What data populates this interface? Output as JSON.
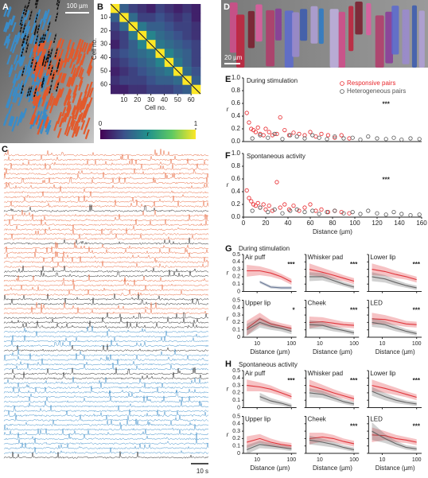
{
  "figure": {
    "panel_labels": [
      "A",
      "B",
      "C",
      "D",
      "E",
      "F",
      "G",
      "H"
    ],
    "scale_bars": {
      "A": "100 µm",
      "C": "10 s",
      "D": "20 µm"
    }
  },
  "traces": [
    {
      "color": "#e8673c",
      "count": 12
    },
    {
      "color": "#222222",
      "count": 1
    },
    {
      "color": "#e8673c",
      "count": 6
    },
    {
      "color": "#222222",
      "count": 1
    },
    {
      "color": "#e8673c",
      "count": 5
    },
    {
      "color": "#222222",
      "count": 2
    },
    {
      "color": "#e8673c",
      "count": 4
    },
    {
      "color": "#222222",
      "count": 2
    },
    {
      "color": "#e8673c",
      "count": 2
    },
    {
      "color": "#222222",
      "count": 3
    },
    {
      "color": "#3a8cc8",
      "count": 4
    },
    {
      "color": "#222222",
      "count": 1
    },
    {
      "color": "#3a8cc8",
      "count": 4
    },
    {
      "color": "#222222",
      "count": 2
    },
    {
      "color": "#3a8cc8",
      "count": 16
    },
    {
      "color": "#222222",
      "count": 1
    }
  ],
  "chart_data": [
    {
      "type": "heatmap",
      "xlabel": "Cell no.",
      "ylabel": "Cell no.",
      "xlim": [
        0,
        67
      ],
      "ylim": [
        0,
        67
      ],
      "xticks": [
        10,
        20,
        30,
        40,
        50,
        60
      ],
      "yticks": [
        10,
        20,
        30,
        40,
        50,
        60
      ],
      "clim": [
        0,
        1
      ],
      "colorbar_ticks": [
        0,
        1
      ],
      "colorbar_label": "r",
      "colors": [
        "#440154",
        "#3b528b",
        "#21918c",
        "#5ec962",
        "#fde725"
      ],
      "values": [
        [
          1,
          0.3,
          0.2,
          0.15,
          0.1,
          0.2,
          0.15,
          0.1,
          0.15,
          0.1
        ],
        [
          0.3,
          1,
          0.35,
          0.2,
          0.2,
          0.25,
          0.2,
          0.15,
          0.2,
          0.1
        ],
        [
          0.2,
          0.35,
          1,
          0.4,
          0.3,
          0.3,
          0.25,
          0.2,
          0.2,
          0.15
        ],
        [
          0.15,
          0.2,
          0.4,
          1,
          0.45,
          0.35,
          0.3,
          0.25,
          0.2,
          0.15
        ],
        [
          0.1,
          0.2,
          0.3,
          0.45,
          1,
          0.4,
          0.35,
          0.3,
          0.25,
          0.2
        ],
        [
          0.2,
          0.25,
          0.3,
          0.35,
          0.4,
          1,
          0.45,
          0.35,
          0.3,
          0.2
        ],
        [
          0.15,
          0.2,
          0.25,
          0.3,
          0.35,
          0.45,
          1,
          0.4,
          0.3,
          0.2
        ],
        [
          0.1,
          0.15,
          0.2,
          0.25,
          0.3,
          0.35,
          0.4,
          1,
          0.35,
          0.25
        ],
        [
          0.15,
          0.2,
          0.2,
          0.2,
          0.25,
          0.3,
          0.3,
          0.35,
          1,
          0.3
        ],
        [
          0.1,
          0.1,
          0.15,
          0.15,
          0.2,
          0.2,
          0.2,
          0.25,
          0.3,
          1
        ]
      ]
    },
    {
      "type": "scatter",
      "title": "During stimulation",
      "ylabel": "r",
      "annotation": "***",
      "legend": "upper right",
      "xlim": [
        0,
        160
      ],
      "ylim": [
        0,
        1
      ],
      "yticks": [
        {
          "value": 0,
          "label": "0.0"
        },
        {
          "value": 0.2,
          "label": "0.2"
        },
        {
          "value": 0.4,
          "label": "0.4"
        },
        {
          "value": 0.6,
          "label": "0.6"
        },
        {
          "value": 0.8,
          "label": "0.8"
        },
        {
          "value": 1,
          "label": "1.0"
        }
      ],
      "series": [
        {
          "name": "Responsive pairs",
          "color": "#e8262b",
          "x": [
            3,
            5,
            7,
            9,
            11,
            13,
            15,
            18,
            20,
            23,
            26,
            30,
            33,
            37,
            41,
            45,
            50,
            55,
            60,
            65,
            70,
            76,
            82,
            88,
            95
          ],
          "values": [
            0.45,
            0.3,
            0.2,
            0.18,
            0.15,
            0.22,
            0.12,
            0.1,
            0.2,
            0.15,
            0.1,
            0.12,
            0.38,
            0.18,
            0.1,
            0.14,
            0.12,
            0.1,
            0.15,
            0.08,
            0.12,
            0.1,
            0.06,
            0.1,
            0.05
          ]
        },
        {
          "name": "Heterogeneous pairs",
          "color": "#555555",
          "x": [
            8,
            15,
            22,
            28,
            35,
            42,
            48,
            55,
            62,
            68,
            75,
            82,
            90,
            98,
            105,
            112,
            120,
            128,
            135,
            142,
            150,
            158
          ],
          "values": [
            0.05,
            0.1,
            0.06,
            0.12,
            0.04,
            0.1,
            0.08,
            0.05,
            0.1,
            0.06,
            0.04,
            0.08,
            0.05,
            0.06,
            0.03,
            0.08,
            0.05,
            0.04,
            0.06,
            0.03,
            0.05,
            0.04
          ]
        }
      ]
    },
    {
      "type": "scatter",
      "title": "Spontaneous activity",
      "ylabel": "r",
      "xlabel": "Distance (µm)",
      "annotation": "***",
      "xlim": [
        0,
        160
      ],
      "ylim": [
        0,
        1
      ],
      "xticks": [
        0,
        20,
        40,
        60,
        80,
        100,
        120,
        140,
        160
      ],
      "yticks": [
        {
          "value": 0,
          "label": "0.0"
        },
        {
          "value": 0.2,
          "label": "0.2"
        },
        {
          "value": 0.4,
          "label": "0.4"
        },
        {
          "value": 0.6,
          "label": "0.6"
        },
        {
          "value": 0.8,
          "label": "0.8"
        },
        {
          "value": 1,
          "label": "1.0"
        }
      ],
      "series": [
        {
          "color": "#e8262b",
          "x": [
            3,
            5,
            7,
            9,
            11,
            13,
            15,
            18,
            20,
            23,
            26,
            30,
            33,
            37,
            41,
            45,
            50,
            55,
            60,
            65,
            70,
            76,
            82,
            88,
            95
          ],
          "values": [
            0.42,
            0.3,
            0.25,
            0.2,
            0.18,
            0.22,
            0.15,
            0.2,
            0.12,
            0.18,
            0.1,
            0.55,
            0.15,
            0.2,
            0.12,
            0.18,
            0.1,
            0.15,
            0.2,
            0.1,
            0.12,
            0.08,
            0.1,
            0.08,
            0.06
          ]
        },
        {
          "color": "#555555",
          "x": [
            8,
            15,
            22,
            28,
            35,
            42,
            48,
            55,
            62,
            68,
            75,
            82,
            90,
            98,
            105,
            112,
            120,
            128,
            135,
            142,
            150,
            158
          ],
          "values": [
            0.1,
            0.15,
            0.08,
            0.12,
            0.06,
            0.1,
            0.12,
            0.08,
            0.1,
            0.05,
            0.08,
            0.1,
            0.06,
            0.08,
            0.05,
            0.1,
            0.06,
            0.04,
            0.08,
            0.05,
            0.03,
            0.04
          ]
        }
      ]
    },
    {
      "type": "line",
      "title": "During stimulation",
      "ylabel": "r",
      "xlabel": "Distance (µm)",
      "log_x": true,
      "xlim": [
        4,
        140
      ],
      "ylim": [
        0,
        0.5
      ],
      "xticks": [
        10,
        100
      ],
      "yticks": [
        0,
        0.1,
        0.2,
        0.3,
        0.4,
        0.5
      ],
      "x": [
        5,
        12,
        25,
        50,
        100
      ],
      "panels": [
        {
          "title": "Air puff",
          "annotation": "***",
          "series": [
            {
              "color": "#e0343a",
              "values": [
                0.28,
                0.28,
                0.25,
                0.2,
                0.13
              ],
              "errors": [
                0.08,
                0.06,
                0.05,
                0.04,
                0.04
              ]
            },
            {
              "color": "#6c7a96",
              "values": [
                null,
                0.13,
                0.06,
                0.05,
                0.05
              ],
              "errors": [
                null,
                0.02,
                0.02,
                0.02,
                0.02
              ]
            }
          ]
        },
        {
          "title": "Whisker pad",
          "annotation": "***",
          "series": [
            {
              "color": "#e0343a",
              "values": [
                0.3,
                0.26,
                0.22,
                0.18,
                0.14
              ],
              "errors": [
                0.08,
                0.06,
                0.05,
                0.04,
                0.04
              ]
            },
            {
              "color": "#666666",
              "values": [
                0.2,
                0.2,
                0.15,
                0.1,
                0.06
              ],
              "errors": [
                0.06,
                0.05,
                0.04,
                0.03,
                0.03
              ]
            }
          ]
        },
        {
          "title": "Lower lip",
          "annotation": "***",
          "series": [
            {
              "color": "#e0343a",
              "values": [
                0.3,
                0.27,
                0.23,
                0.2,
                0.16
              ],
              "errors": [
                0.08,
                0.06,
                0.05,
                0.04,
                0.04
              ]
            },
            {
              "color": "#666666",
              "values": [
                0.2,
                0.17,
                0.12,
                0.08,
                0.05
              ],
              "errors": [
                0.06,
                0.05,
                0.04,
                0.03,
                0.03
              ]
            }
          ]
        },
        {
          "title": "Upper lip",
          "annotation": "*",
          "series": [
            {
              "color": "#e0343a",
              "values": [
                0.12,
                0.25,
                0.18,
                0.15,
                0.12
              ],
              "errors": [
                0.1,
                0.08,
                0.05,
                0.04,
                0.04
              ]
            },
            {
              "color": "#666666",
              "values": [
                0.1,
                0.2,
                0.15,
                0.12,
                0.08
              ],
              "errors": [
                0.08,
                0.07,
                0.05,
                0.04,
                0.04
              ]
            }
          ]
        },
        {
          "title": "Cheek",
          "annotation": "***",
          "series": [
            {
              "color": "#e0343a",
              "values": [
                0.2,
                0.21,
                0.19,
                0.17,
                0.16
              ],
              "errors": [
                0.08,
                0.06,
                0.05,
                0.04,
                0.04
              ]
            },
            {
              "color": "#666666",
              "values": [
                0.17,
                0.16,
                0.12,
                0.09,
                0.06
              ],
              "errors": [
                0.06,
                0.05,
                0.04,
                0.03,
                0.03
              ]
            }
          ]
        },
        {
          "title": "LED",
          "annotation": "***",
          "series": [
            {
              "color": "#e0343a",
              "values": [
                0.25,
                0.24,
                0.21,
                0.18,
                0.17
              ],
              "errors": [
                0.08,
                0.06,
                0.05,
                0.04,
                0.04
              ]
            },
            {
              "color": "#666666",
              "values": [
                0.2,
                0.17,
                0.12,
                0.08,
                0.05
              ],
              "errors": [
                0.06,
                0.05,
                0.04,
                0.03,
                0.03
              ]
            }
          ]
        }
      ]
    },
    {
      "type": "line",
      "title": "Spontaneous activity",
      "ylabel": "r",
      "xlabel": "Distance (µm)",
      "log_x": true,
      "xlim": [
        4,
        140
      ],
      "ylim": [
        0,
        0.5
      ],
      "xticks": [
        10,
        100
      ],
      "yticks": [
        0,
        0.1,
        0.2,
        0.3,
        0.4,
        0.5
      ],
      "x": [
        5,
        12,
        25,
        50,
        100
      ],
      "panels": [
        {
          "title": "Air puff",
          "annotation": "***",
          "series": [
            {
              "color": "#e0343a",
              "values": [
                0.3,
                0.28,
                0.25,
                0.2,
                0.15
              ],
              "errors": [
                0.08,
                0.06,
                0.05,
                0.04,
                0.04
              ]
            },
            {
              "color": "#666666",
              "values": [
                null,
                0.15,
                0.09,
                0.06,
                0.02
              ],
              "errors": [
                null,
                0.05,
                0.04,
                0.03,
                0.03
              ]
            }
          ]
        },
        {
          "title": "Whisker pad",
          "annotation": "***",
          "series": [
            {
              "color": "#e0343a",
              "values": [
                0.3,
                0.25,
                0.2,
                0.16,
                0.12
              ],
              "errors": [
                0.08,
                0.06,
                0.05,
                0.04,
                0.04
              ]
            },
            {
              "color": "#666666",
              "values": [
                0.2,
                0.18,
                0.13,
                0.08,
                0.05
              ],
              "errors": [
                0.06,
                0.05,
                0.04,
                0.03,
                0.03
              ]
            }
          ]
        },
        {
          "title": "Lower lip",
          "annotation": "***",
          "series": [
            {
              "color": "#e0343a",
              "values": [
                0.3,
                0.26,
                0.22,
                0.18,
                0.14
              ],
              "errors": [
                0.08,
                0.06,
                0.05,
                0.04,
                0.04
              ]
            },
            {
              "color": "#666666",
              "values": [
                0.22,
                0.15,
                0.1,
                0.07,
                0.05
              ],
              "errors": [
                0.06,
                0.05,
                0.04,
                0.03,
                0.03
              ]
            }
          ]
        },
        {
          "title": "Upper lip",
          "series": [
            {
              "color": "#e0343a",
              "values": [
                0.15,
                0.2,
                0.15,
                0.12,
                0.1
              ],
              "errors": [
                0.08,
                0.06,
                0.05,
                0.04,
                0.04
              ]
            },
            {
              "color": "#666666",
              "values": [
                0.05,
                0.12,
                0.1,
                0.08,
                0.06
              ],
              "errors": [
                0.06,
                0.05,
                0.04,
                0.03,
                0.03
              ]
            }
          ]
        },
        {
          "title": "Cheek",
          "annotation": "***",
          "series": [
            {
              "color": "#e0343a",
              "values": [
                0.2,
                0.22,
                0.2,
                0.16,
                0.13
              ],
              "errors": [
                0.08,
                0.06,
                0.05,
                0.04,
                0.04
              ]
            },
            {
              "color": "#666666",
              "values": [
                0.18,
                0.15,
                0.12,
                0.08,
                0.05
              ],
              "errors": [
                0.06,
                0.05,
                0.04,
                0.03,
                0.03
              ]
            }
          ]
        },
        {
          "title": "LED",
          "annotation": "***",
          "series": [
            {
              "color": "#e0343a",
              "values": [
                0.25,
                0.24,
                0.2,
                0.18,
                0.15
              ],
              "errors": [
                0.1,
                0.06,
                0.05,
                0.04,
                0.04
              ]
            },
            {
              "color": "#666666",
              "values": [
                0.3,
                0.2,
                0.13,
                0.08,
                0.06
              ],
              "errors": [
                0.12,
                0.06,
                0.04,
                0.03,
                0.03
              ]
            }
          ]
        }
      ]
    }
  ]
}
